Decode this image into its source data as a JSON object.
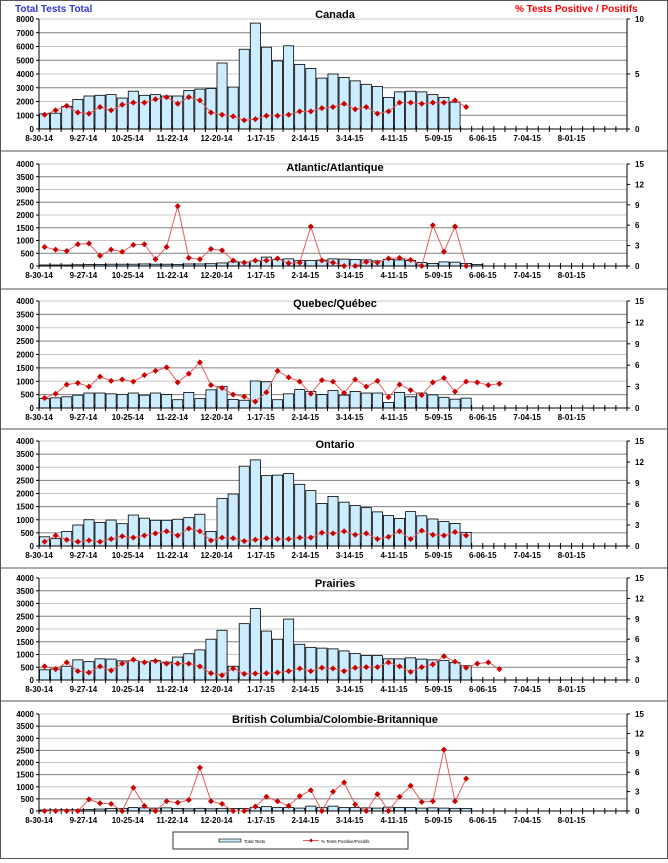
{
  "header": {
    "left_axis_title": "Total Tests Total",
    "right_axis_title": "% Tests Positive / Positifs"
  },
  "legend": {
    "bar_label": "Total Tests",
    "line_label": "% Tests Positive/Positifs"
  },
  "colors": {
    "bar_fill": "#CCECFF",
    "bar_stroke": "#000000",
    "line": "#E06060",
    "marker": "#CC0000",
    "left_title": "#3333CC",
    "right_title": "#FF0000"
  },
  "chart_data": [
    {
      "type": "bar",
      "title": "Canada",
      "x_tick_labels": [
        "8-30-14",
        "9-27-14",
        "10-25-14",
        "11-22-14",
        "12-20-14",
        "1-17-15",
        "2-14-15",
        "3-14-15",
        "4-11-15",
        "5-09-15",
        "6-06-15",
        "7-04-15",
        "8-01-15"
      ],
      "n_weeks": 53,
      "ylim": [
        0,
        8000
      ],
      "y_ticks": [
        0,
        1000,
        2000,
        3000,
        4000,
        5000,
        6000,
        7000,
        8000
      ],
      "y2lim": [
        0,
        10
      ],
      "y2_ticks": [
        0,
        5,
        10
      ],
      "grid": true,
      "series": [
        {
          "name": "Total Tests",
          "axis": "left",
          "values": [
            1100,
            1150,
            1650,
            2150,
            2400,
            2450,
            2500,
            2250,
            2750,
            2450,
            2500,
            2400,
            2400,
            2800,
            2900,
            2950,
            4800,
            3050,
            5800,
            7700,
            5950,
            4950,
            6050,
            4700,
            4400,
            3700,
            4000,
            3750,
            3500,
            3250,
            3100,
            2300,
            2700,
            2750,
            2700,
            2500,
            2300,
            1950,
            0,
            0
          ]
        },
        {
          "name": "% Tests Positive/Positifs",
          "axis": "right",
          "values": [
            1.3,
            1.7,
            2.1,
            1.5,
            1.4,
            2.0,
            1.7,
            2.2,
            2.4,
            2.4,
            2.7,
            2.9,
            2.3,
            2.9,
            2.6,
            1.5,
            1.3,
            1.15,
            0.8,
            0.9,
            1.2,
            1.2,
            1.3,
            1.6,
            1.6,
            1.9,
            2.0,
            2.3,
            1.8,
            2.0,
            1.4,
            1.6,
            2.4,
            2.4,
            2.3,
            2.4,
            2.4,
            2.6,
            2.0
          ]
        }
      ]
    },
    {
      "type": "bar",
      "title": "Atlantic/Atlantique",
      "x_tick_labels": [
        "8-30-14",
        "9-27-14",
        "10-25-14",
        "11-22-14",
        "12-20-14",
        "1-17-15",
        "2-14-15",
        "3-14-15",
        "4-11-15",
        "5-09-15",
        "6-06-15",
        "7-04-15",
        "8-01-15"
      ],
      "n_weeks": 53,
      "ylim": [
        0,
        4000
      ],
      "y_ticks": [
        0,
        500,
        1000,
        1500,
        2000,
        2500,
        3000,
        3500,
        4000
      ],
      "y2lim": [
        0,
        15
      ],
      "y2_ticks": [
        0,
        3,
        6,
        9,
        12,
        15
      ],
      "grid": true,
      "series": [
        {
          "name": "Total Tests",
          "axis": "left",
          "values": [
            40,
            40,
            40,
            50,
            60,
            60,
            70,
            70,
            70,
            80,
            70,
            70,
            60,
            80,
            80,
            90,
            120,
            160,
            150,
            200,
            350,
            250,
            280,
            210,
            220,
            230,
            280,
            270,
            260,
            240,
            200,
            260,
            240,
            220,
            140,
            100,
            160,
            150,
            100,
            60
          ]
        },
        {
          "name": "% Tests Positive/Positifs",
          "axis": "right",
          "values": [
            2.8,
            2.4,
            2.2,
            3.2,
            3.3,
            1.5,
            2.4,
            2.1,
            3.1,
            3.2,
            1.0,
            2.8,
            8.8,
            1.2,
            1.0,
            2.5,
            2.3,
            0.8,
            0.5,
            0.8,
            0.8,
            1.1,
            0.4,
            0.5,
            5.8,
            0.8,
            0.5,
            0.0,
            0.0,
            0.6,
            0.5,
            1.1,
            1.2,
            0.9,
            0.0,
            6.0,
            2.1,
            5.8,
            0.0
          ]
        }
      ]
    },
    {
      "type": "bar",
      "title": "Quebec/Québec",
      "x_tick_labels": [
        "8-30-14",
        "9-27-14",
        "10-25-14",
        "11-22-14",
        "12-20-14",
        "1-17-15",
        "2-14-15",
        "3-14-15",
        "4-11-15",
        "5-09-15",
        "6-06-15",
        "7-04-15",
        "8-01-15"
      ],
      "n_weeks": 53,
      "ylim": [
        0,
        4000
      ],
      "y_ticks": [
        0,
        500,
        1000,
        1500,
        2000,
        2500,
        3000,
        3500,
        4000
      ],
      "y2lim": [
        0,
        15
      ],
      "y2_ticks": [
        0,
        3,
        6,
        9,
        12,
        15
      ],
      "grid": true,
      "series": [
        {
          "name": "Total Tests",
          "axis": "left",
          "values": [
            350,
            380,
            420,
            480,
            560,
            560,
            530,
            510,
            560,
            480,
            560,
            500,
            310,
            580,
            350,
            680,
            800,
            320,
            290,
            1010,
            980,
            310,
            530,
            690,
            620,
            500,
            650,
            480,
            620,
            560,
            560,
            210,
            580,
            420,
            560,
            490,
            400,
            330,
            370,
            0
          ]
        },
        {
          "name": "% Tests Positive/Positifs",
          "axis": "right",
          "values": [
            1.4,
            2.0,
            3.3,
            3.5,
            3.0,
            4.4,
            3.8,
            4.0,
            3.7,
            4.6,
            5.2,
            5.7,
            3.6,
            4.8,
            6.4,
            3.2,
            2.8,
            1.9,
            1.6,
            0.9,
            2.2,
            5.2,
            4.3,
            3.7,
            2.0,
            3.9,
            3.7,
            2.1,
            4.0,
            3.0,
            3.8,
            1.5,
            3.3,
            2.5,
            1.8,
            3.6,
            4.2,
            2.3,
            3.7,
            3.6,
            3.2,
            3.4
          ]
        }
      ]
    },
    {
      "type": "bar",
      "title": "Ontario",
      "x_tick_labels": [
        "8-30-14",
        "9-27-14",
        "10-25-14",
        "11-22-14",
        "12-20-14",
        "1-17-15",
        "2-14-15",
        "3-14-15",
        "4-11-15",
        "5-09-15",
        "6-06-15",
        "7-04-15",
        "8-01-15"
      ],
      "n_weeks": 53,
      "ylim": [
        0,
        4000
      ],
      "y_ticks": [
        0,
        500,
        1000,
        1500,
        2000,
        2500,
        3000,
        3500,
        4000
      ],
      "y2lim": [
        0,
        15
      ],
      "y2_ticks": [
        0,
        3,
        6,
        9,
        12,
        15
      ],
      "grid": true,
      "series": [
        {
          "name": "Total Tests",
          "axis": "left",
          "values": [
            350,
            280,
            550,
            800,
            1000,
            900,
            990,
            850,
            1180,
            1060,
            980,
            980,
            1020,
            1080,
            1210,
            550,
            1810,
            1980,
            3040,
            3280,
            2680,
            2700,
            2760,
            2350,
            2110,
            1620,
            1890,
            1670,
            1540,
            1460,
            1300,
            1160,
            1050,
            1310,
            1150,
            1030,
            930,
            860,
            520,
            0
          ]
        },
        {
          "name": "% Tests Positive/Positifs",
          "axis": "right",
          "values": [
            0.6,
            1.5,
            0.9,
            0.6,
            0.8,
            0.6,
            1.0,
            1.4,
            1.2,
            1.5,
            1.8,
            2.1,
            1.5,
            2.5,
            2.1,
            0.8,
            1.2,
            1.1,
            0.7,
            0.9,
            1.1,
            1.0,
            1.0,
            1.2,
            1.2,
            1.9,
            1.8,
            2.1,
            1.6,
            1.8,
            1.0,
            1.3,
            2.1,
            1.0,
            2.2,
            1.6,
            1.5,
            2.0,
            1.5
          ]
        }
      ]
    },
    {
      "type": "bar",
      "title": "Prairies",
      "x_tick_labels": [
        "8-30-14",
        "9-27-14",
        "10-25-14",
        "11-22-14",
        "12-20-14",
        "1-17-15",
        "2-14-15",
        "3-14-15",
        "4-11-15",
        "5-09-15",
        "6-06-15",
        "7-04-15",
        "8-01-15"
      ],
      "n_weeks": 53,
      "ylim": [
        0,
        4000
      ],
      "y_ticks": [
        0,
        500,
        1000,
        1500,
        2000,
        2500,
        3000,
        3500,
        4000
      ],
      "y2lim": [
        0,
        15
      ],
      "y2_ticks": [
        0,
        3,
        6,
        9,
        12,
        15
      ],
      "grid": true,
      "series": [
        {
          "name": "Total Tests",
          "axis": "left",
          "values": [
            400,
            430,
            540,
            790,
            720,
            830,
            820,
            750,
            760,
            720,
            760,
            700,
            900,
            1030,
            1180,
            1600,
            1950,
            540,
            2210,
            2800,
            1920,
            1600,
            2390,
            1400,
            1280,
            1250,
            1220,
            1140,
            1040,
            960,
            960,
            830,
            830,
            870,
            820,
            790,
            760,
            680,
            560,
            0
          ]
        },
        {
          "name": "% Tests Positive/Positifs",
          "axis": "right",
          "values": [
            2.0,
            1.6,
            2.6,
            1.3,
            1.1,
            2.0,
            1.4,
            2.4,
            3.0,
            2.6,
            2.8,
            2.4,
            2.4,
            2.4,
            2.0,
            1.0,
            0.7,
            1.7,
            0.9,
            0.95,
            1.0,
            1.1,
            1.3,
            1.7,
            1.3,
            1.8,
            1.7,
            1.3,
            1.8,
            1.9,
            1.9,
            2.6,
            2.0,
            1.2,
            1.9,
            2.3,
            3.5,
            2.7,
            1.8,
            2.4,
            2.6,
            1.6
          ]
        }
      ]
    },
    {
      "type": "bar",
      "title": "British Columbia/Colombie-Britannique",
      "x_tick_labels": [
        "8-30-14",
        "9-27-14",
        "10-25-14",
        "11-22-14",
        "12-20-14",
        "1-17-15",
        "2-14-15",
        "3-14-15",
        "4-11-15",
        "5-09-15",
        "6-06-15",
        "7-04-15",
        "8-01-15"
      ],
      "n_weeks": 53,
      "ylim": [
        0,
        4000
      ],
      "y_ticks": [
        0,
        500,
        1000,
        1500,
        2000,
        2500,
        3000,
        3500,
        4000
      ],
      "y2lim": [
        0,
        15
      ],
      "y2_ticks": [
        0,
        3,
        6,
        9,
        12,
        15
      ],
      "grid": true,
      "series": [
        {
          "name": "Total Tests",
          "axis": "left",
          "values": [
            40,
            50,
            50,
            50,
            60,
            80,
            100,
            110,
            140,
            130,
            120,
            130,
            100,
            90,
            110,
            90,
            110,
            100,
            100,
            150,
            180,
            140,
            140,
            120,
            200,
            140,
            200,
            140,
            140,
            130,
            120,
            160,
            150,
            140,
            120,
            130,
            120,
            110,
            100,
            0
          ]
        },
        {
          "name": "% Tests Positive/Positifs",
          "axis": "right",
          "values": [
            0.0,
            0.0,
            0.0,
            0.0,
            1.8,
            1.2,
            1.1,
            0.0,
            3.6,
            0.8,
            0.0,
            1.5,
            1.3,
            1.7,
            6.7,
            1.5,
            1.1,
            0.0,
            0.0,
            0.7,
            2.2,
            1.5,
            0.8,
            2.3,
            3.2,
            0.0,
            3.0,
            4.4,
            1.0,
            0.0,
            2.6,
            0.0,
            2.2,
            3.9,
            1.4,
            1.5,
            9.5,
            1.5,
            5.0
          ]
        }
      ]
    }
  ]
}
